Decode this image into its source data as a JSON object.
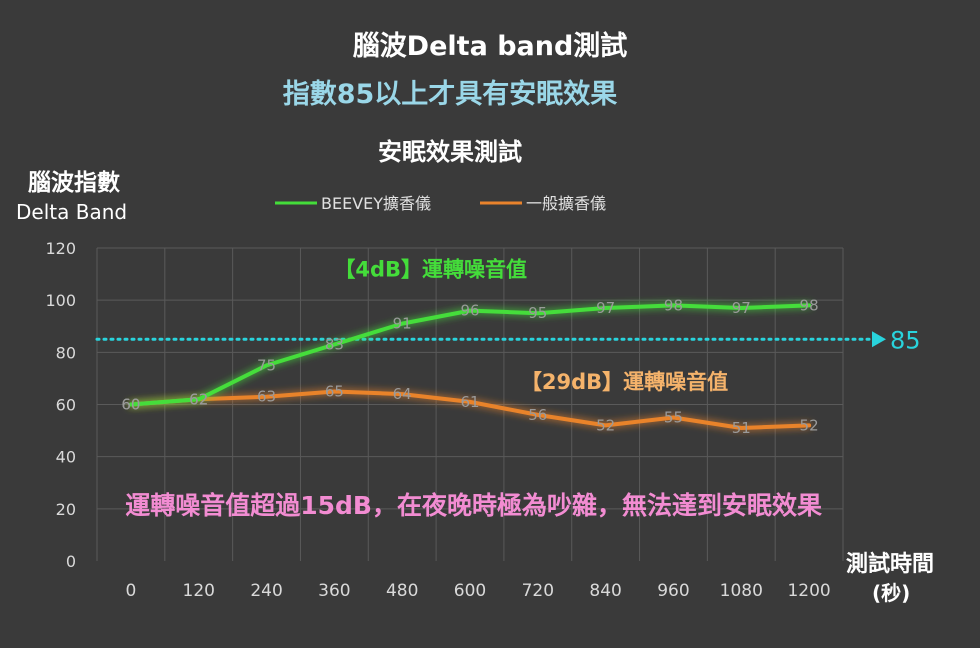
{
  "header": {
    "title": "腦波Delta band測試",
    "subtitle": "指數85以上才具有安眠效果"
  },
  "chart_data": {
    "type": "line",
    "title": "安眠效果測試",
    "ylabel_line1": "腦波指數",
    "ylabel_line2": "Delta Band",
    "xlabel_line1": "測試時間",
    "xlabel_line2": "(秒)",
    "x": [
      0,
      120,
      240,
      360,
      480,
      600,
      720,
      840,
      960,
      1080,
      1200
    ],
    "ylim": [
      0,
      120
    ],
    "yticks": [
      0,
      20,
      40,
      60,
      80,
      100,
      120
    ],
    "grid": true,
    "legend_position": "top",
    "series": [
      {
        "name": "BEEVEY擴香儀",
        "color": "#44dd3a",
        "values": [
          60,
          62,
          75,
          83,
          91,
          96,
          95,
          97,
          98,
          97,
          98
        ]
      },
      {
        "name": "一般擴香儀",
        "color": "#e9832c",
        "values": [
          60,
          62,
          63,
          65,
          64,
          61,
          56,
          52,
          55,
          51,
          52
        ]
      }
    ],
    "reference_line": {
      "value": 85,
      "label": "85",
      "color": "#29d3dc"
    },
    "annotations": [
      {
        "text": "【4dB】運轉噪音值",
        "color": "#44dd3a",
        "x": 360,
        "y": 109
      },
      {
        "text": "【29dB】運轉噪音值",
        "color": "#f5b36b",
        "x": 690,
        "y": 66
      },
      {
        "text": "運轉噪音值超過15dB，在夜晚時極為吵雜，無法達到安眠效果",
        "color": "#f28cd2",
        "x": -10,
        "y": 18
      }
    ]
  }
}
